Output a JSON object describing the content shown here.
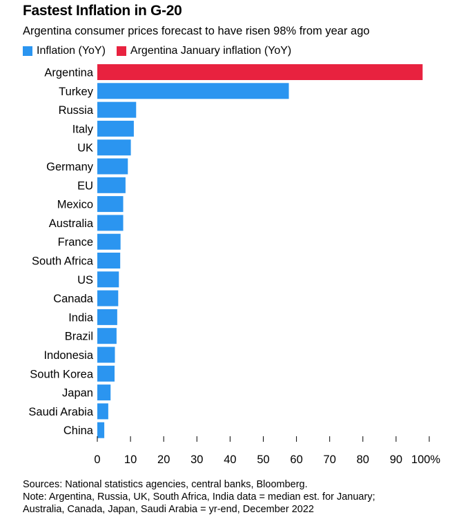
{
  "chart_data": {
    "type": "bar",
    "orientation": "horizontal",
    "title": "Fastest Inflation in G-20",
    "subtitle": "Argentina consumer prices forecast to have risen 98% from year ago",
    "legend": [
      {
        "name": "Inflation (YoY)",
        "color": "#2b95f0"
      },
      {
        "name": "Argentina January inflation (YoY)",
        "color": "#e8223f"
      }
    ],
    "legend_position": "top-left",
    "categories": [
      "Argentina",
      "Turkey",
      "Russia",
      "Italy",
      "UK",
      "Germany",
      "EU",
      "Mexico",
      "Australia",
      "France",
      "South Africa",
      "US",
      "Canada",
      "India",
      "Brazil",
      "Indonesia",
      "South Korea",
      "Japan",
      "Saudi Arabia",
      "China"
    ],
    "values": [
      98.0,
      57.7,
      11.7,
      11.0,
      10.1,
      9.2,
      8.5,
      7.8,
      7.8,
      7.0,
      6.9,
      6.5,
      6.3,
      6.0,
      5.8,
      5.3,
      5.2,
      4.0,
      3.3,
      2.1
    ],
    "series_index": [
      1,
      0,
      0,
      0,
      0,
      0,
      0,
      0,
      0,
      0,
      0,
      0,
      0,
      0,
      0,
      0,
      0,
      0,
      0,
      0
    ],
    "xlim": [
      0,
      100
    ],
    "xticks": [
      0,
      10,
      20,
      30,
      40,
      50,
      60,
      70,
      80,
      90,
      100
    ],
    "xtick_labels": [
      "0",
      "10",
      "20",
      "30",
      "40",
      "50",
      "60",
      "70",
      "80",
      "90",
      "100%"
    ],
    "grid": false
  },
  "notes": {
    "sources": "Sources: National statistics agencies, central banks, Bloomberg.",
    "note_line1": "Note: Argentina, Russia, UK, South Africa, India data = median est. for January;",
    "note_line2": "Australia, Canada, Japan, Saudi Arabia = yr-end, December 2022"
  }
}
